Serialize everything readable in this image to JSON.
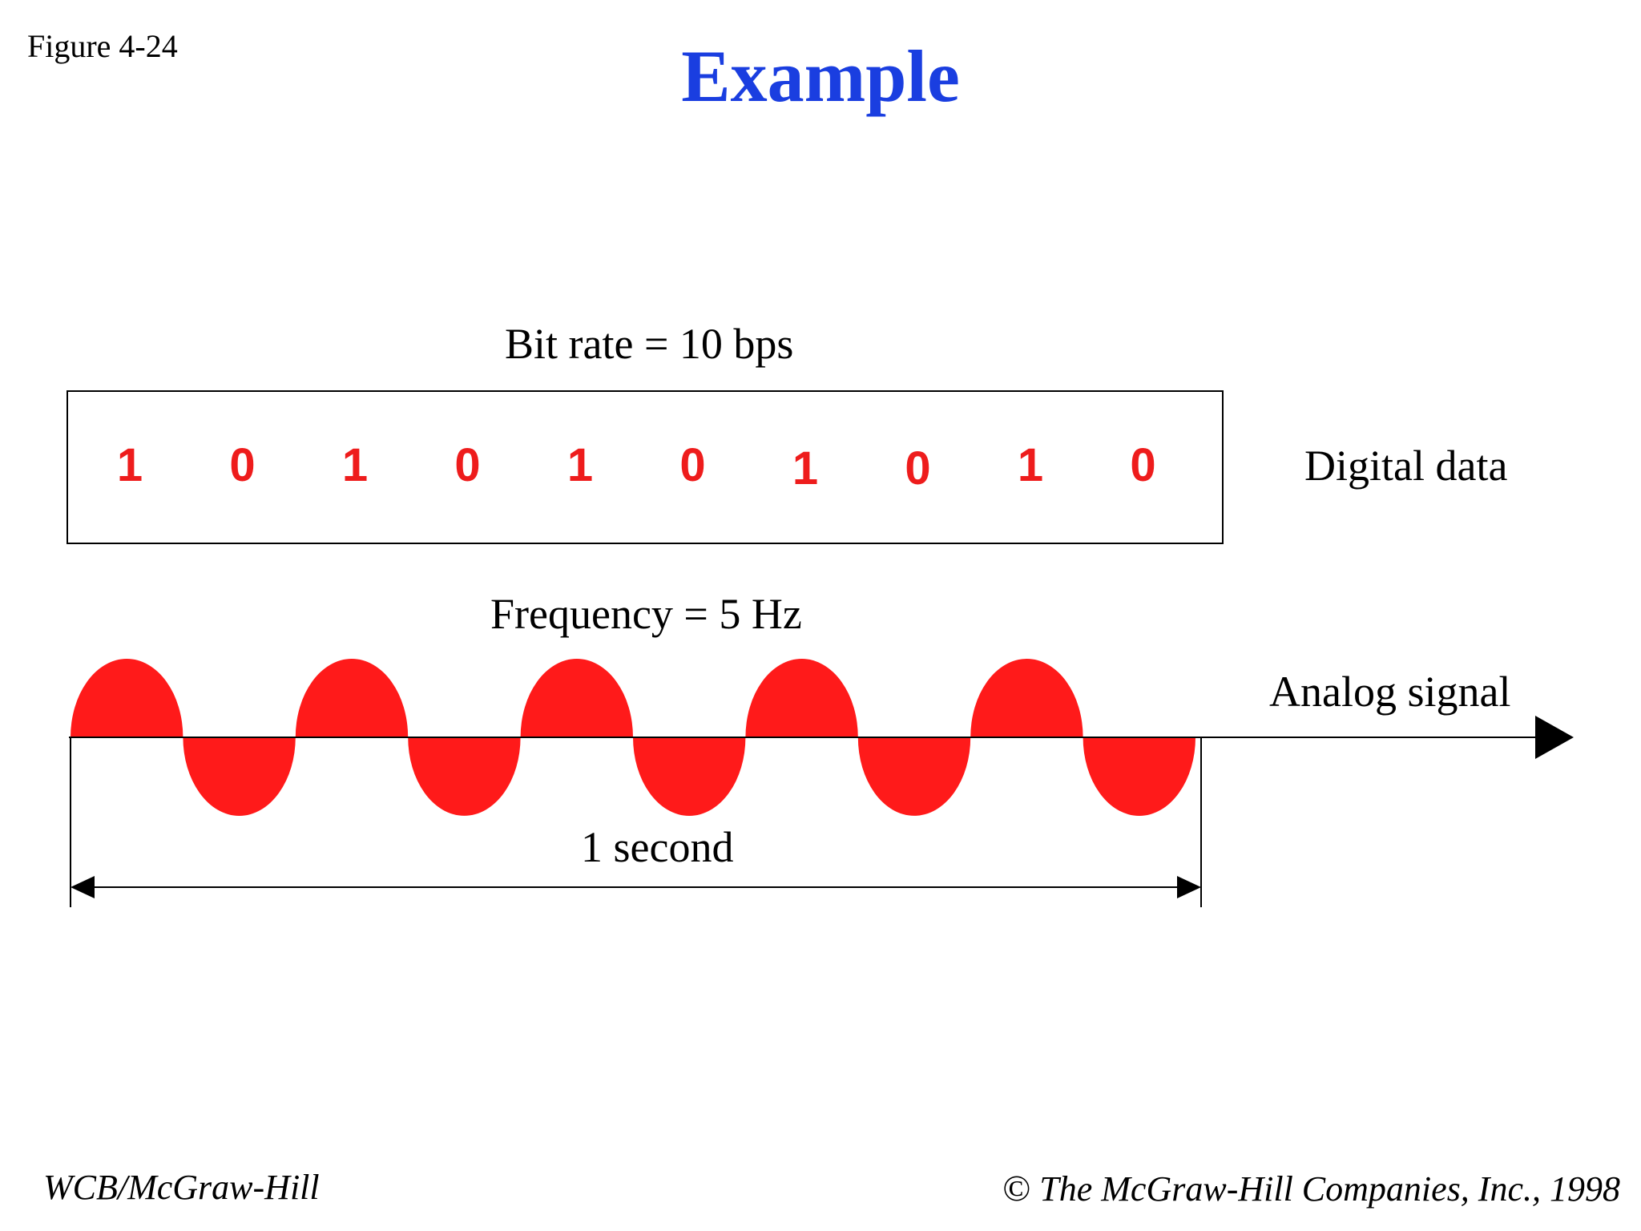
{
  "figure_label": "Figure 4-24",
  "title": "Example",
  "bit_rate_label": "Bit rate = 10 bps",
  "bits": [
    "1",
    "0",
    "1",
    "0",
    "1",
    "0",
    "1",
    "0",
    "1",
    "0"
  ],
  "digital_data_label": "Digital data",
  "frequency_label": "Frequency = 5 Hz",
  "analog_signal_label": "Analog signal",
  "duration_label": "1 second",
  "wave_cycles": 5,
  "footer": {
    "left": "WCB/McGraw-Hill",
    "copyright_symbol": "©",
    "right": "The McGraw-Hill Companies, Inc., 1998"
  },
  "colors": {
    "title": "#1a3ee0",
    "signal": "#ff1a1a",
    "bits": "#ee1c1c",
    "text": "#000000"
  }
}
